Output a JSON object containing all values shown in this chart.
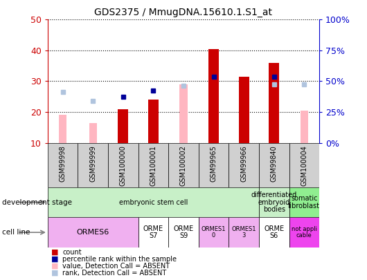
{
  "title": "GDS2375 / MmugDNA.15610.1.S1_at",
  "samples": [
    "GSM99998",
    "GSM99999",
    "GSM100000",
    "GSM100001",
    "GSM100002",
    "GSM99965",
    "GSM99966",
    "GSM99840",
    "GSM100004"
  ],
  "count": [
    null,
    null,
    21,
    24,
    null,
    40.5,
    31.5,
    36,
    null
  ],
  "percentile_rank": [
    null,
    null,
    25,
    27,
    null,
    31.5,
    null,
    31.5,
    null
  ],
  "value_absent": [
    19,
    16.5,
    null,
    null,
    29,
    null,
    null,
    null,
    20.5
  ],
  "rank_absent": [
    26.5,
    23.5,
    null,
    null,
    28.5,
    null,
    null,
    29,
    29
  ],
  "ylim": [
    10,
    50
  ],
  "yticks_left": [
    10,
    20,
    30,
    40,
    50
  ],
  "yticks_right": [
    0,
    25,
    50,
    75,
    100
  ],
  "development_stage_groups": [
    {
      "label": "embryonic stem cell",
      "start": 0,
      "end": 7,
      "color": "#c8f0c8"
    },
    {
      "label": "differentiated\nembryoid\nbodies",
      "start": 7,
      "end": 8,
      "color": "#c8f0c8"
    },
    {
      "label": "somatic\nfibroblast",
      "start": 8,
      "end": 9,
      "color": "#90ee90"
    }
  ],
  "cell_line_groups": [
    {
      "label": "ORMES6",
      "start": 0,
      "end": 3,
      "color": "#f0b0f0",
      "fontsize": 8
    },
    {
      "label": "ORME\nS7",
      "start": 3,
      "end": 4,
      "color": "#ffffff",
      "fontsize": 7
    },
    {
      "label": "ORME\nS9",
      "start": 4,
      "end": 5,
      "color": "#ffffff",
      "fontsize": 7
    },
    {
      "label": "ORMES1\n0",
      "start": 5,
      "end": 6,
      "color": "#f0b0f0",
      "fontsize": 6
    },
    {
      "label": "ORMES1\n3",
      "start": 6,
      "end": 7,
      "color": "#f0b0f0",
      "fontsize": 6
    },
    {
      "label": "ORME\nS6",
      "start": 7,
      "end": 8,
      "color": "#ffffff",
      "fontsize": 7
    },
    {
      "label": "not appli\ncable",
      "start": 8,
      "end": 9,
      "color": "#ee44ee",
      "fontsize": 6
    }
  ],
  "count_color": "#cc0000",
  "percentile_color": "#000099",
  "value_absent_color": "#ffb6c1",
  "rank_absent_color": "#b0c4de",
  "axis_color_left": "#cc0000",
  "axis_color_right": "#0000cc",
  "xtick_bg": "#d0d0d0",
  "legend_items": [
    {
      "color": "#cc0000",
      "label": "count"
    },
    {
      "color": "#000099",
      "label": "percentile rank within the sample"
    },
    {
      "color": "#ffb6c1",
      "label": "value, Detection Call = ABSENT"
    },
    {
      "color": "#b0c4de",
      "label": "rank, Detection Call = ABSENT"
    }
  ]
}
